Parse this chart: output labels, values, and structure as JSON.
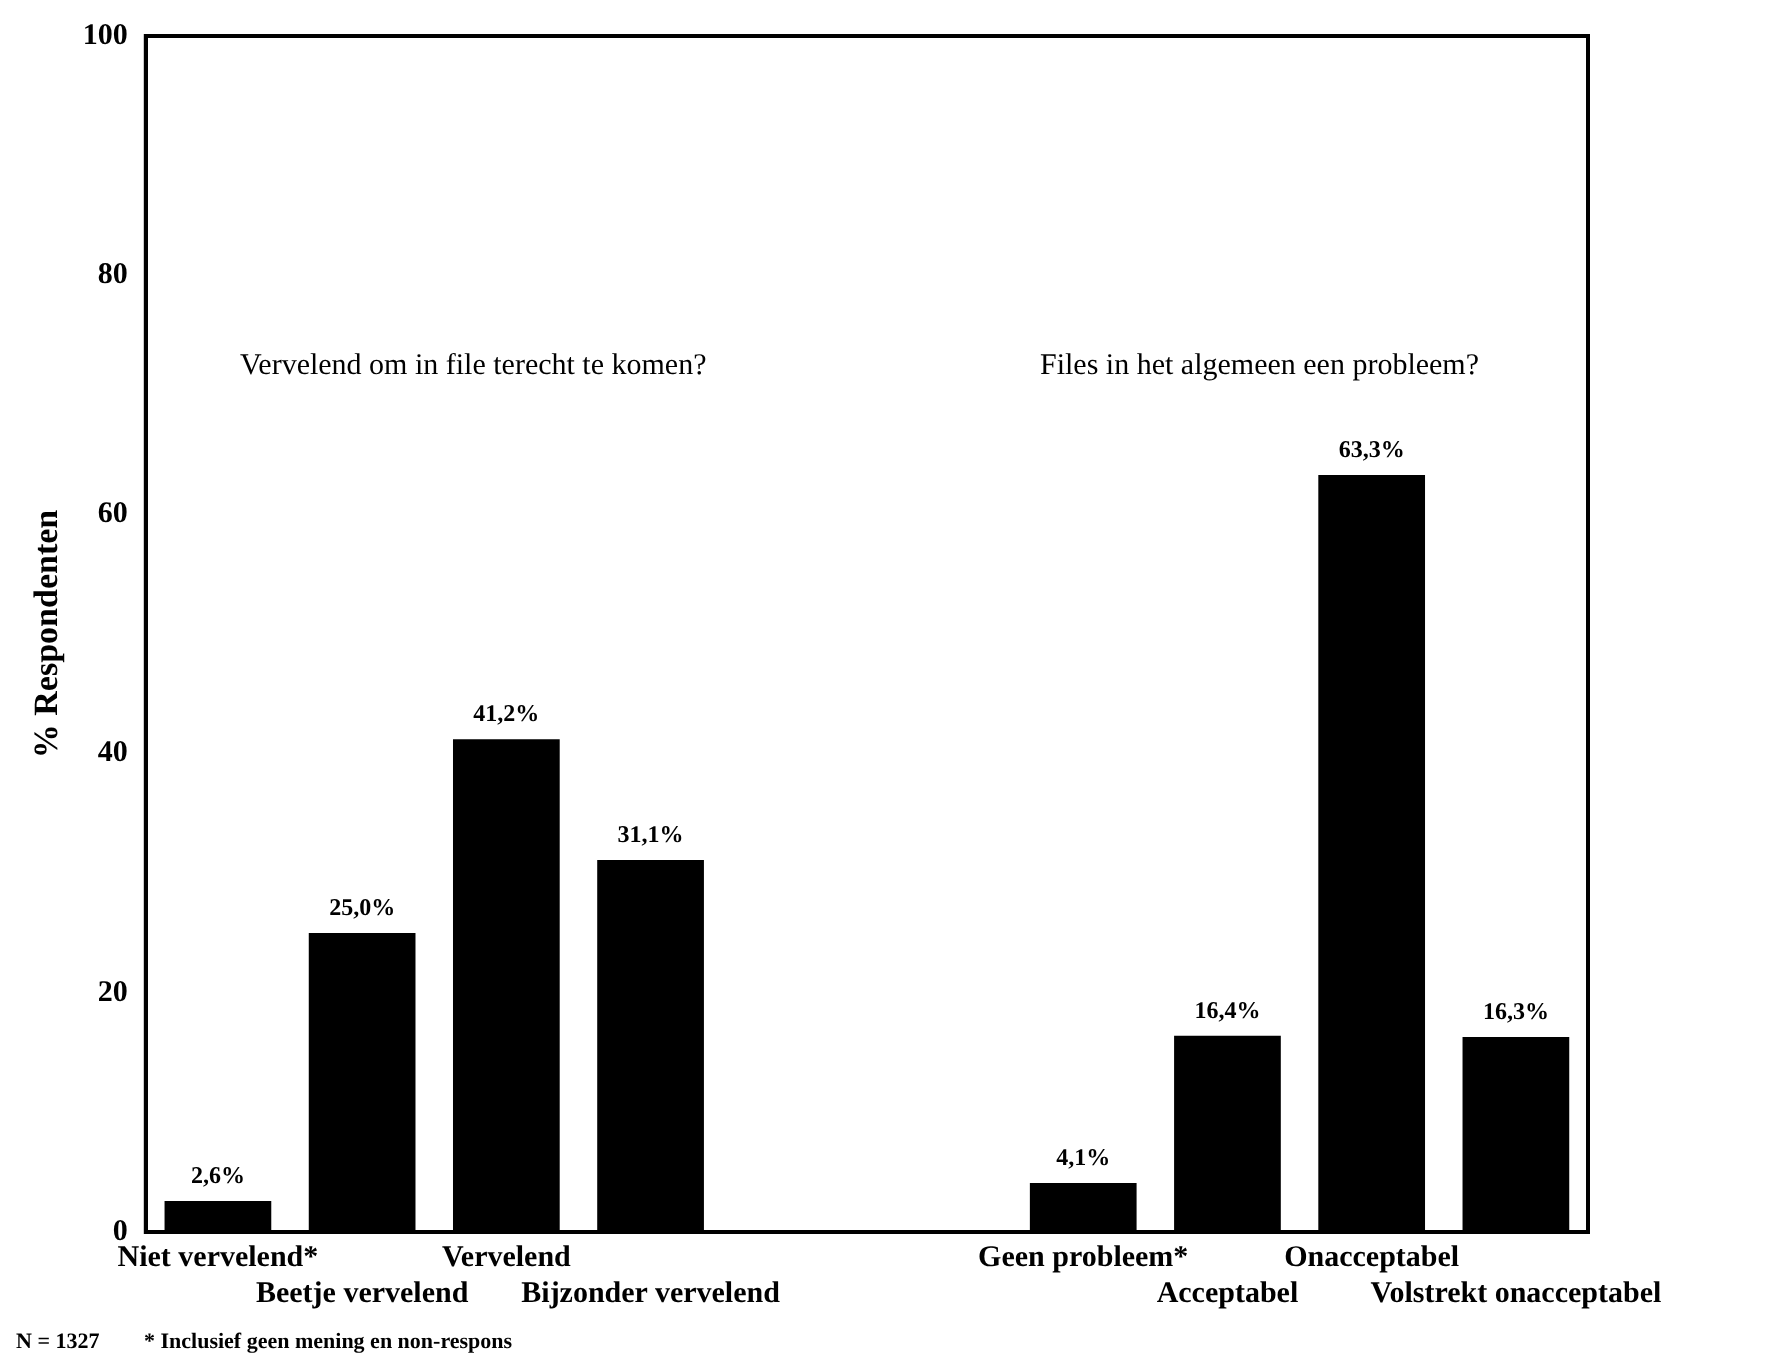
{
  "chart_data": {
    "type": "bar",
    "ylabel": "% Respondenten",
    "categories": [
      "Niet vervelend*",
      "Beetje vervelend",
      "Vervelend",
      "Bijzonder vervelend",
      null,
      null,
      "Geen probleem*",
      "Acceptabel",
      "Onacceptabel",
      "Volstrekt onacceptabel"
    ],
    "values": [
      2.6,
      25.0,
      41.2,
      31.1,
      null,
      null,
      4.1,
      16.4,
      63.3,
      16.3
    ],
    "value_labels": [
      "2,6%",
      "25,0%",
      "41,2%",
      "31,1%",
      null,
      null,
      "4,1%",
      "16,4%",
      "63,3%",
      "16,3%"
    ],
    "color": "#000000",
    "ylim": [
      0,
      100
    ],
    "yticks": [
      0,
      20,
      40,
      60,
      80,
      100
    ],
    "grid": false,
    "legend": false,
    "annotations": [
      "Vervelend om in file terecht te komen?",
      "Files in het algemeen een probleem?",
      "N = 1327",
      "* Inclusief geen mening en non-respons"
    ]
  }
}
